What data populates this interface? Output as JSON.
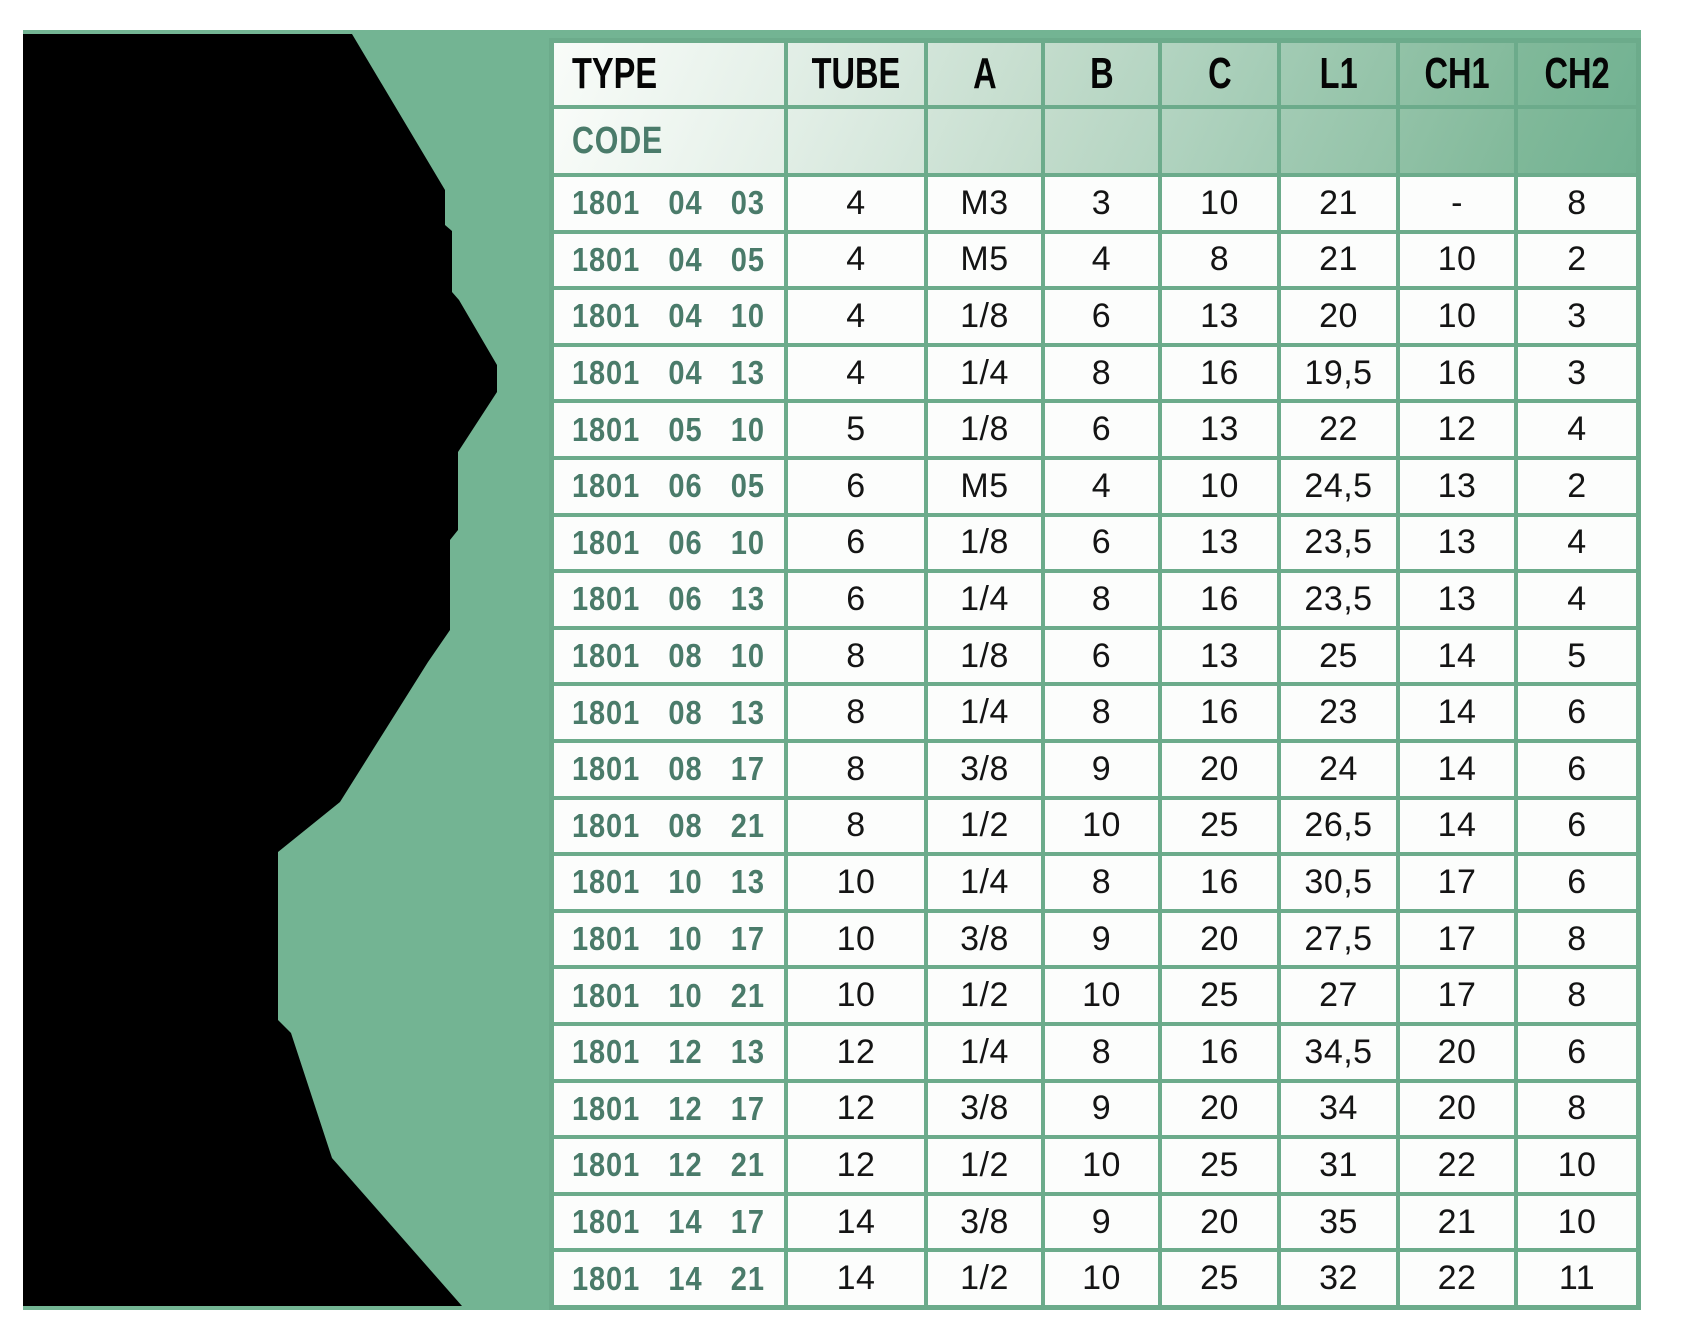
{
  "palette": {
    "page_background": "#ffffff",
    "panel_green": "#73b493",
    "grid_border_green": "#6cab8b",
    "header_text": "#050505",
    "code_text_green": "#4a7b6a",
    "data_text": "#141414",
    "cell_background": "#fcfdfc",
    "silhouette_black": "#000000"
  },
  "table": {
    "columns": [
      "TYPE",
      "TUBE",
      "A",
      "B",
      "C",
      "L1",
      "CH1",
      "CH2"
    ],
    "code_label": "CODE",
    "rows": [
      {
        "code": "1801 04 03",
        "tube": "4",
        "a": "M3",
        "b": "3",
        "c": "10",
        "l1": "21",
        "ch1": "-",
        "ch2": "8"
      },
      {
        "code": "1801 04 05",
        "tube": "4",
        "a": "M5",
        "b": "4",
        "c": "8",
        "l1": "21",
        "ch1": "10",
        "ch2": "2"
      },
      {
        "code": "1801 04 10",
        "tube": "4",
        "a": "1/8",
        "b": "6",
        "c": "13",
        "l1": "20",
        "ch1": "10",
        "ch2": "3"
      },
      {
        "code": "1801 04 13",
        "tube": "4",
        "a": "1/4",
        "b": "8",
        "c": "16",
        "l1": "19,5",
        "ch1": "16",
        "ch2": "3"
      },
      {
        "code": "1801 05 10",
        "tube": "5",
        "a": "1/8",
        "b": "6",
        "c": "13",
        "l1": "22",
        "ch1": "12",
        "ch2": "4"
      },
      {
        "code": "1801 06 05",
        "tube": "6",
        "a": "M5",
        "b": "4",
        "c": "10",
        "l1": "24,5",
        "ch1": "13",
        "ch2": "2"
      },
      {
        "code": "1801 06 10",
        "tube": "6",
        "a": "1/8",
        "b": "6",
        "c": "13",
        "l1": "23,5",
        "ch1": "13",
        "ch2": "4"
      },
      {
        "code": "1801 06 13",
        "tube": "6",
        "a": "1/4",
        "b": "8",
        "c": "16",
        "l1": "23,5",
        "ch1": "13",
        "ch2": "4"
      },
      {
        "code": "1801 08 10",
        "tube": "8",
        "a": "1/8",
        "b": "6",
        "c": "13",
        "l1": "25",
        "ch1": "14",
        "ch2": "5"
      },
      {
        "code": "1801 08 13",
        "tube": "8",
        "a": "1/4",
        "b": "8",
        "c": "16",
        "l1": "23",
        "ch1": "14",
        "ch2": "6"
      },
      {
        "code": "1801 08 17",
        "tube": "8",
        "a": "3/8",
        "b": "9",
        "c": "20",
        "l1": "24",
        "ch1": "14",
        "ch2": "6"
      },
      {
        "code": "1801 08 21",
        "tube": "8",
        "a": "1/2",
        "b": "10",
        "c": "25",
        "l1": "26,5",
        "ch1": "14",
        "ch2": "6"
      },
      {
        "code": "1801 10 13",
        "tube": "10",
        "a": "1/4",
        "b": "8",
        "c": "16",
        "l1": "30,5",
        "ch1": "17",
        "ch2": "6"
      },
      {
        "code": "1801 10 17",
        "tube": "10",
        "a": "3/8",
        "b": "9",
        "c": "20",
        "l1": "27,5",
        "ch1": "17",
        "ch2": "8"
      },
      {
        "code": "1801 10 21",
        "tube": "10",
        "a": "1/2",
        "b": "10",
        "c": "25",
        "l1": "27",
        "ch1": "17",
        "ch2": "8"
      },
      {
        "code": "1801 12 13",
        "tube": "12",
        "a": "1/4",
        "b": "8",
        "c": "16",
        "l1": "34,5",
        "ch1": "20",
        "ch2": "6"
      },
      {
        "code": "1801 12 17",
        "tube": "12",
        "a": "3/8",
        "b": "9",
        "c": "20",
        "l1": "34",
        "ch1": "20",
        "ch2": "8"
      },
      {
        "code": "1801 12 21",
        "tube": "12",
        "a": "1/2",
        "b": "10",
        "c": "25",
        "l1": "31",
        "ch1": "22",
        "ch2": "10"
      },
      {
        "code": "1801 14 17",
        "tube": "14",
        "a": "3/8",
        "b": "9",
        "c": "20",
        "l1": "35",
        "ch1": "21",
        "ch2": "10"
      },
      {
        "code": "1801 14 21",
        "tube": "14",
        "a": "1/2",
        "b": "10",
        "c": "25",
        "l1": "32",
        "ch1": "22",
        "ch2": "11"
      }
    ]
  }
}
